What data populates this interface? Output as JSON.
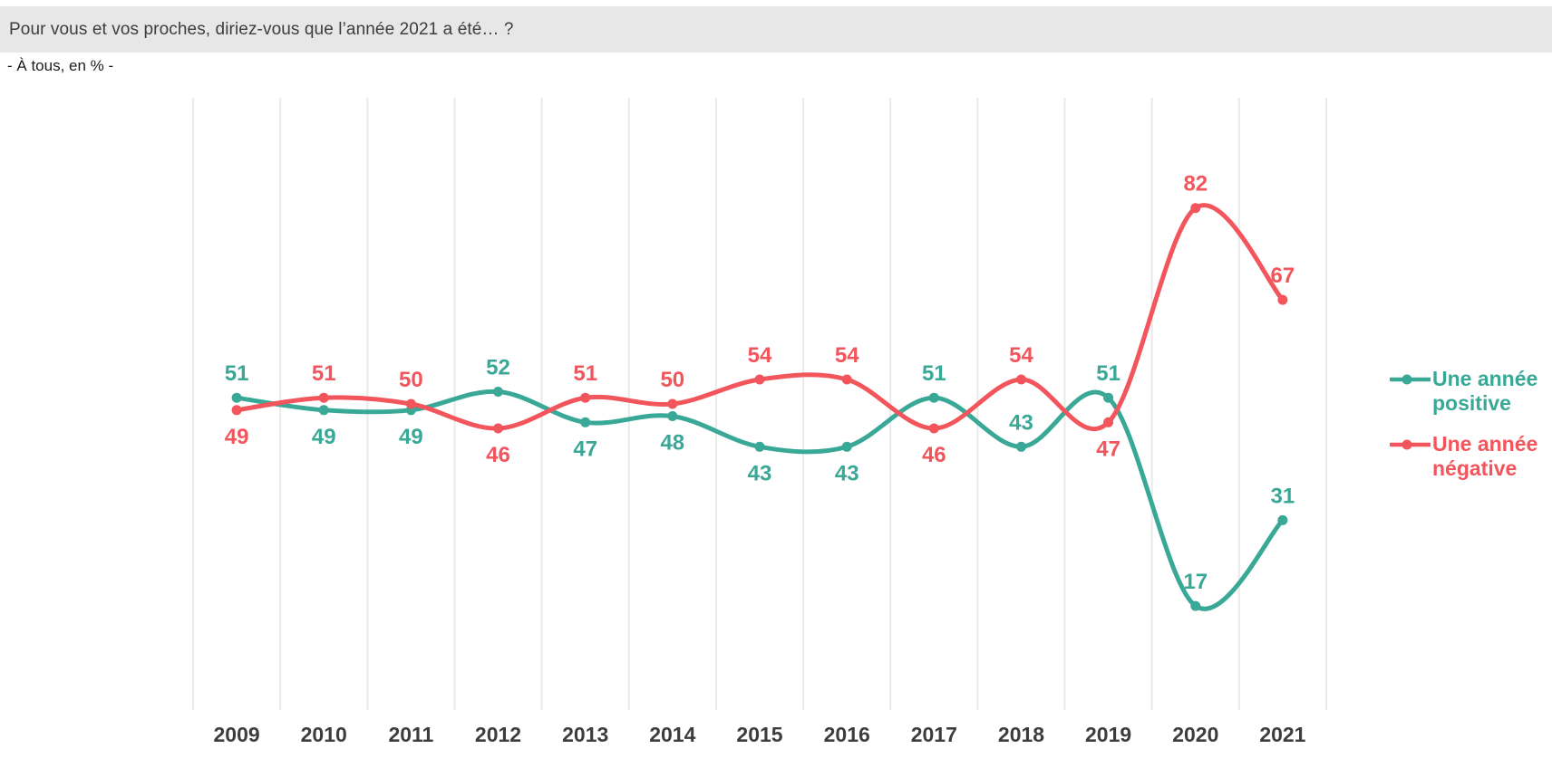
{
  "header": {
    "title": "Pour vous et vos proches, diriez-vous que l’année 2021 a été… ?",
    "subtitle": "- À tous, en % -"
  },
  "colors": {
    "title_bar_bg": "#e7e7e7",
    "grid_line": "#eaeaea",
    "axis_label": "#3d3d3d",
    "positive": "#3aa897",
    "negative": "#f2555c"
  },
  "chart_data": {
    "type": "line",
    "subtype": "spline",
    "title": "Pour vous et vos proches, diriez-vous que l’année 2021 a été… ?",
    "subtitle": "- À tous, en % -",
    "unit": "%",
    "categories": [
      "2009",
      "2010",
      "2011",
      "2012",
      "2013",
      "2014",
      "2015",
      "2016",
      "2017",
      "2018",
      "2019",
      "2020",
      "2021"
    ],
    "series": [
      {
        "name": "Une année positive",
        "color": "#3aa897",
        "values": [
          51,
          49,
          49,
          52,
          47,
          48,
          43,
          43,
          51,
          43,
          51,
          17,
          31
        ],
        "label_positions": [
          "above",
          "below",
          "below",
          "above",
          "below",
          "below",
          "below",
          "below",
          "above",
          "above",
          "above",
          "above",
          "above"
        ]
      },
      {
        "name": "Une année négative",
        "color": "#f2555c",
        "values": [
          49,
          51,
          50,
          46,
          51,
          50,
          54,
          54,
          46,
          54,
          47,
          82,
          67
        ],
        "label_positions": [
          "below",
          "above",
          "above",
          "below",
          "above",
          "above",
          "above",
          "above",
          "below",
          "above",
          "below",
          "above",
          "above"
        ]
      }
    ],
    "xlabel": "",
    "ylabel": "",
    "ylim": [
      0,
      100
    ],
    "grid": "vertical-lines-between-categories",
    "data_labels": "on",
    "legend_position": "right"
  }
}
